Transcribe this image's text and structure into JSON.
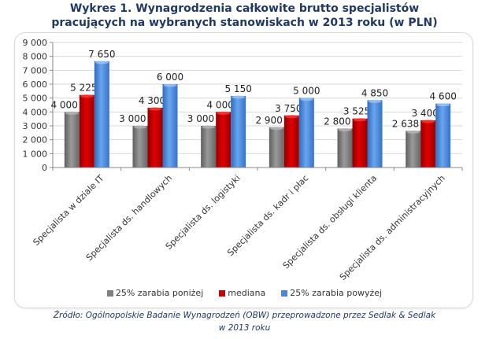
{
  "title": {
    "line1": "Wykres 1. Wynagrodzenia całkowite brutto specjalistów",
    "line2": "pracujących na wybranych stanowiskach w 2013 roku (w PLN)"
  },
  "source": {
    "line1": "Źródło: Ogólnopolskie Badanie Wynagrodzeń (OBW) przeprowadzone przez Sedlak & Sedlak",
    "line2": "w 2013 roku"
  },
  "legend": [
    {
      "label": "25% zarabia poniżej",
      "color": "#808080"
    },
    {
      "label": "mediana",
      "color": "#c00000"
    },
    {
      "label": "25% zarabia powyżej",
      "color": "#4a86d8"
    }
  ],
  "chart_data": {
    "type": "bar",
    "title": "Wykres 1. Wynagrodzenia całkowite brutto specjalistów pracujących na wybranych stanowiskach w 2013 roku (w PLN)",
    "xlabel": "",
    "ylabel": "",
    "ylim": [
      0,
      9000
    ],
    "yticks": [
      "0",
      "1 000",
      "2 000",
      "3 000",
      "4 000",
      "5 000",
      "6 000",
      "7 000",
      "8 000",
      "9 000"
    ],
    "grid": true,
    "legend_position": "bottom",
    "categories": [
      "Specjalista w dziale IT",
      "Specjalista ds. handlowych",
      "Specjalista ds. logistyki",
      "Specjalista ds. kadr i płac",
      "Specjalista ds. obsługi klienta",
      "Specjalista ds. administracyjnych"
    ],
    "series": [
      {
        "name": "25% zarabia poniżej",
        "color": "#808080",
        "values": [
          4000,
          3000,
          3000,
          2900,
          2800,
          2638
        ],
        "labels": [
          "4 000",
          "3 000",
          "3 000",
          "2 900",
          "2 800",
          "2 638"
        ]
      },
      {
        "name": "mediana",
        "color": "#c00000",
        "values": [
          5225,
          4300,
          4000,
          3750,
          3525,
          3400
        ],
        "labels": [
          "5 225",
          "4 300",
          "4 000",
          "3 750",
          "3 525",
          "3 400"
        ]
      },
      {
        "name": "25% zarabia powyżej",
        "color": "#4a86d8",
        "values": [
          7650,
          6000,
          5150,
          5000,
          4850,
          4600
        ],
        "labels": [
          "7 650",
          "6 000",
          "5 150",
          "5 000",
          "4 850",
          "4 600"
        ]
      }
    ]
  }
}
